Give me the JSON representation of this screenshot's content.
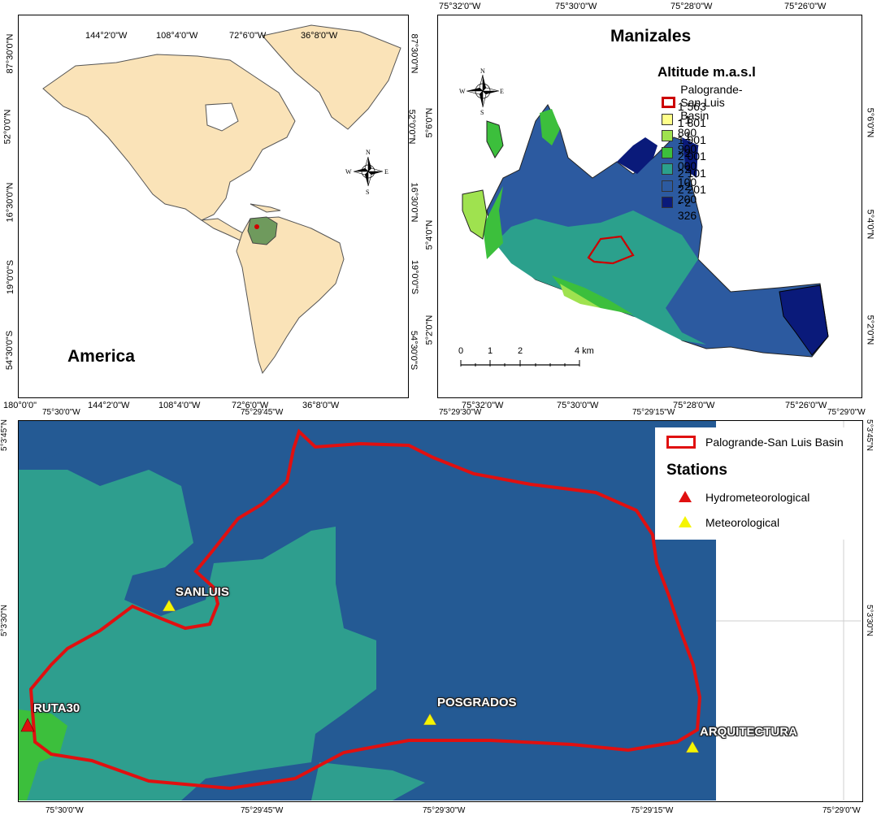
{
  "america": {
    "title": "America",
    "top_ticks": [
      "144°2'0\"W",
      "108°4'0\"W",
      "72°6'0\"W",
      "36°8'0\"W"
    ],
    "bottom_ticks": [
      "180°0'0\"",
      "144°2'0\"W",
      "108°4'0\"W",
      "72°6'0\"W",
      "36°8'0\"W"
    ],
    "left_ticks": [
      "87°30'0\"N",
      "52°0'0\"N",
      "16°30'0\"N",
      "19°0'0\"S",
      "54°30'0\"S"
    ],
    "right_ticks": [
      "87°30'0\"N",
      "52°0'0\"N",
      "16°30'0\"N",
      "19°0'0\"S",
      "54°30'0\"S"
    ],
    "land_color": "#fae3b8",
    "colombia_color": "#6f9a5d",
    "marker_color": "#d00000"
  },
  "manizales": {
    "title": "Manizales",
    "top_ticks": [
      "75°32'0\"W",
      "75°30'0\"W",
      "75°28'0\"W",
      "75°26'0\"W"
    ],
    "bottom_ticks": [
      "75°32'0\"W",
      "75°30'0\"W",
      "75°28'0\"W",
      "75°26'0\"W"
    ],
    "left_ticks": [
      "5°6'0\"N",
      "5°4'0\"N",
      "5°2'0\"N"
    ],
    "right_ticks": [
      "5°6'0\"N",
      "5°4'0\"N",
      "5°2'0\"N"
    ],
    "legend_title": "Altitude m.a.s.l",
    "legend": [
      {
        "label": "Palogrande-San Luis Basin",
        "color": "#ffffff",
        "outline": "#cc0000"
      },
      {
        "label": "1 563 - 1 800",
        "color": "#ffff8a"
      },
      {
        "label": "1 801 - 1 900",
        "color": "#9fe24f"
      },
      {
        "label": "1 901 - 2 000",
        "color": "#3cbf3c"
      },
      {
        "label": "2 001 - 2 100",
        "color": "#2ba08c"
      },
      {
        "label": "2 101 - 2 200",
        "color": "#2c5aa0"
      },
      {
        "label": "2 201 - 2 326",
        "color": "#0a1a7a"
      }
    ],
    "scale_labels": [
      "0",
      "1",
      "2",
      "4 km"
    ]
  },
  "compass": {
    "n": "N",
    "s": "S",
    "e": "E",
    "w": "W"
  },
  "detail": {
    "top_ticks": [
      "75°30'0\"W",
      "75°29'45\"W",
      "75°29'30\"W",
      "75°29'15\"W",
      "75°29'0\"W"
    ],
    "bottom_ticks": [
      "75°30'0\"W",
      "75°29'45\"W",
      "75°29'30\"W",
      "75°29'15\"W",
      "75°29'0\"W"
    ],
    "left_ticks": [
      "5°3'45\"N",
      "5°3'30\"N"
    ],
    "right_ticks": [
      "5°3'45\"N",
      "5°3'30\"N"
    ],
    "legend_basin": "Palogrande-San Luis Basin",
    "legend_stations_title": "Stations",
    "legend_hydro": "Hydrometeorological",
    "legend_meteo": "Meteorological",
    "stations": [
      {
        "name": "SANLUIS",
        "type": "Meteorological"
      },
      {
        "name": "RUTA30",
        "type": "Hydrometeorological"
      },
      {
        "name": "POSGRADOS",
        "type": "Meteorological"
      },
      {
        "name": "ARQUITECTURA",
        "type": "Meteorological"
      }
    ],
    "colors": {
      "dark": "#245a94",
      "teal": "#2e9e8e",
      "green": "#3cbf3c",
      "basin": "#e01010",
      "hydro": "#e01010",
      "meteo": "#f5f500"
    }
  }
}
